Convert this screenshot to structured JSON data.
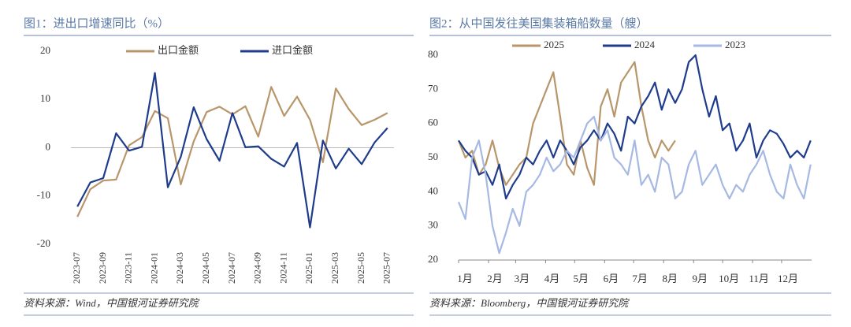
{
  "chart_data": [
    {
      "type": "line",
      "title": "图1：进出口增速同比（%）",
      "source": "资料来源：Wind，中国银河证券研究院",
      "categories": [
        "2023-07",
        null,
        "2023-09",
        null,
        "2023-11",
        null,
        "2024-01",
        null,
        "2024-03",
        null,
        "2024-05",
        null,
        "2024-07",
        null,
        "2024-09",
        null,
        "2024-11",
        null,
        "2025-01",
        null,
        "2025-03",
        null,
        "2025-05",
        null,
        "2025-07"
      ],
      "series": [
        {
          "name": "出口金额",
          "color": "#b8966a",
          "values": [
            -14.3,
            -8.6,
            -6.8,
            -6.6,
            0.5,
            2.2,
            7.6,
            6.1,
            -7.6,
            1.3,
            7.4,
            8.5,
            6.9,
            8.6,
            2.3,
            12.6,
            6.6,
            10.6,
            5.8,
            -3.0,
            12.3,
            8.0,
            4.7,
            5.8,
            7.2
          ]
        },
        {
          "name": "进口金额",
          "color": "#1f3c8c",
          "values": [
            -12.2,
            -7.2,
            -6.3,
            3.0,
            -0.6,
            0.2,
            15.5,
            -8.2,
            -1.9,
            8.4,
            1.8,
            -2.7,
            7.2,
            0.1,
            0.3,
            -2.3,
            -3.9,
            1.0,
            -16.5,
            1.5,
            -4.3,
            -0.2,
            -3.4,
            1.1,
            4.1
          ]
        }
      ],
      "ylim": [
        -20,
        20
      ],
      "yticks": [
        -20,
        -10,
        0,
        10,
        20
      ],
      "grid": false
    },
    {
      "type": "line",
      "title": "图2：从中国发往美国集装箱船数量（艘）",
      "source": "资料来源：Bloomberg，中国银河证券研究院",
      "x": [
        1,
        8,
        15,
        22,
        29,
        36,
        43,
        50,
        57,
        64,
        71,
        78,
        85,
        92,
        99,
        106,
        113,
        120,
        127,
        134,
        141,
        148,
        155,
        162,
        169,
        176,
        183,
        190,
        197,
        204,
        211,
        218,
        225,
        232,
        239,
        246,
        253,
        260,
        267,
        274,
        281,
        288,
        295,
        302,
        309,
        316,
        323,
        330,
        337,
        344,
        351,
        358,
        365
      ],
      "series": [
        {
          "name": "2025",
          "color": "#b8966a",
          "values": [
            55,
            50,
            52,
            45,
            48,
            55,
            47,
            42,
            45,
            48,
            50,
            60,
            65,
            70,
            75,
            62,
            48,
            45,
            55,
            47,
            42,
            65,
            70,
            62,
            72,
            75,
            78,
            65,
            55,
            50,
            55,
            52,
            55,
            null,
            null,
            null,
            null,
            null,
            null,
            null,
            null,
            null,
            null,
            null,
            null,
            null,
            null,
            null,
            null,
            null,
            null,
            null,
            null
          ]
        },
        {
          "name": "2024",
          "color": "#1f3c8c",
          "values": [
            55,
            52,
            50,
            45,
            46,
            42,
            48,
            38,
            42,
            45,
            50,
            48,
            52,
            55,
            50,
            55,
            52,
            48,
            53,
            55,
            58,
            55,
            60,
            57,
            52,
            62,
            60,
            65,
            68,
            72,
            64,
            70,
            66,
            70,
            78,
            80,
            70,
            62,
            68,
            58,
            60,
            52,
            55,
            60,
            50,
            55,
            58,
            57,
            54,
            50,
            52,
            50,
            55
          ]
        },
        {
          "name": "2023",
          "color": "#a6b9e3",
          "values": [
            37,
            32,
            50,
            55,
            45,
            30,
            22,
            28,
            35,
            30,
            40,
            42,
            45,
            50,
            46,
            48,
            52,
            50,
            55,
            60,
            62,
            55,
            58,
            50,
            48,
            45,
            55,
            42,
            45,
            40,
            50,
            48,
            38,
            40,
            48,
            52,
            42,
            45,
            48,
            42,
            38,
            42,
            40,
            45,
            48,
            52,
            45,
            40,
            38,
            48,
            42,
            38,
            48
          ]
        }
      ],
      "xlim": [
        1,
        366
      ],
      "xticks": [
        {
          "value": 1,
          "label": "1月"
        },
        {
          "value": 32,
          "label": "2月"
        },
        {
          "value": 60,
          "label": "3月"
        },
        {
          "value": 91,
          "label": "4月"
        },
        {
          "value": 121,
          "label": "5月"
        },
        {
          "value": 152,
          "label": "6月"
        },
        {
          "value": 182,
          "label": "7月"
        },
        {
          "value": 213,
          "label": "8月"
        },
        {
          "value": 244,
          "label": "9月"
        },
        {
          "value": 274,
          "label": "10月"
        },
        {
          "value": 305,
          "label": "11月"
        },
        {
          "value": 335,
          "label": "12月"
        }
      ],
      "ylim": [
        20,
        80
      ],
      "yticks": [
        20,
        30,
        40,
        50,
        60,
        70,
        80
      ],
      "grid": false
    }
  ]
}
